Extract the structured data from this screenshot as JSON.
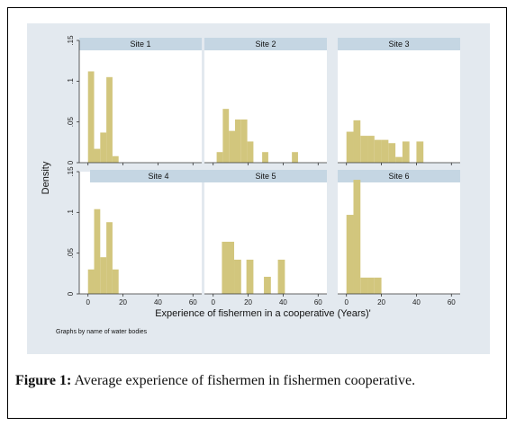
{
  "figure": {
    "caption_label": "Figure 1:",
    "caption_text": "Average experience of fishermen in fishermen cooperative."
  },
  "chart_data": {
    "type": "bar",
    "note": "Graphs by name of water bodies",
    "xlabel": "Experience of fishermen in a cooperative (Years)'",
    "ylabel": "Density",
    "xlim": [
      -5,
      65
    ],
    "ylim": [
      0,
      0.15
    ],
    "xticks": [
      0,
      20,
      40,
      60
    ],
    "xtick_labels": [
      "0",
      "20",
      "40",
      "60"
    ],
    "yticks": [
      0,
      0.05,
      0.1,
      0.15
    ],
    "ytick_labels": [
      "0",
      ".05",
      ".1",
      ".15"
    ],
    "bar_color": "#d2c67d",
    "panel_background": "#ffffff",
    "strip_color": "#c5d6e3",
    "grid": false,
    "panels": [
      {
        "name": "Site 1",
        "bins": [
          {
            "x0": 0,
            "x1": 3.5,
            "density": 0.112
          },
          {
            "x0": 3.5,
            "x1": 7,
            "density": 0.017
          },
          {
            "x0": 7,
            "x1": 10.5,
            "density": 0.037
          },
          {
            "x0": 10.5,
            "x1": 14,
            "density": 0.105
          },
          {
            "x0": 14,
            "x1": 17.5,
            "density": 0.008
          }
        ]
      },
      {
        "name": "Site 2",
        "bins": [
          {
            "x0": 2,
            "x1": 5.5,
            "density": 0.013
          },
          {
            "x0": 5.5,
            "x1": 9,
            "density": 0.066
          },
          {
            "x0": 9,
            "x1": 12.5,
            "density": 0.039
          },
          {
            "x0": 12.5,
            "x1": 16,
            "density": 0.053
          },
          {
            "x0": 16,
            "x1": 19.5,
            "density": 0.053
          },
          {
            "x0": 19.5,
            "x1": 23,
            "density": 0.026
          },
          {
            "x0": 28,
            "x1": 31.5,
            "density": 0.013
          },
          {
            "x0": 45,
            "x1": 48.5,
            "density": 0.013
          }
        ]
      },
      {
        "name": "Site 3",
        "bins": [
          {
            "x0": 0,
            "x1": 4,
            "density": 0.038
          },
          {
            "x0": 4,
            "x1": 8,
            "density": 0.052
          },
          {
            "x0": 8,
            "x1": 12,
            "density": 0.033
          },
          {
            "x0": 12,
            "x1": 16,
            "density": 0.033
          },
          {
            "x0": 16,
            "x1": 20,
            "density": 0.028
          },
          {
            "x0": 20,
            "x1": 24,
            "density": 0.028
          },
          {
            "x0": 24,
            "x1": 28,
            "density": 0.024
          },
          {
            "x0": 28,
            "x1": 32,
            "density": 0.007
          },
          {
            "x0": 32,
            "x1": 36,
            "density": 0.026
          },
          {
            "x0": 40,
            "x1": 44,
            "density": 0.026
          }
        ]
      },
      {
        "name": "Site 4",
        "bins": [
          {
            "x0": 0,
            "x1": 3.5,
            "density": 0.03
          },
          {
            "x0": 3.5,
            "x1": 7,
            "density": 0.104
          },
          {
            "x0": 7,
            "x1": 10.5,
            "density": 0.045
          },
          {
            "x0": 10.5,
            "x1": 14,
            "density": 0.088
          },
          {
            "x0": 14,
            "x1": 17.5,
            "density": 0.03
          }
        ]
      },
      {
        "name": "Site 5",
        "bins": [
          {
            "x0": 5,
            "x1": 12,
            "density": 0.064
          },
          {
            "x0": 12,
            "x1": 16,
            "density": 0.042
          },
          {
            "x0": 19,
            "x1": 23,
            "density": 0.042
          },
          {
            "x0": 29,
            "x1": 33,
            "density": 0.021
          },
          {
            "x0": 37,
            "x1": 41,
            "density": 0.042
          }
        ]
      },
      {
        "name": "Site 6",
        "bins": [
          {
            "x0": 0,
            "x1": 4,
            "density": 0.097
          },
          {
            "x0": 4,
            "x1": 8,
            "density": 0.14
          },
          {
            "x0": 8,
            "x1": 12,
            "density": 0.02
          },
          {
            "x0": 12,
            "x1": 16,
            "density": 0.02
          },
          {
            "x0": 16,
            "x1": 20,
            "density": 0.02
          }
        ]
      }
    ]
  }
}
